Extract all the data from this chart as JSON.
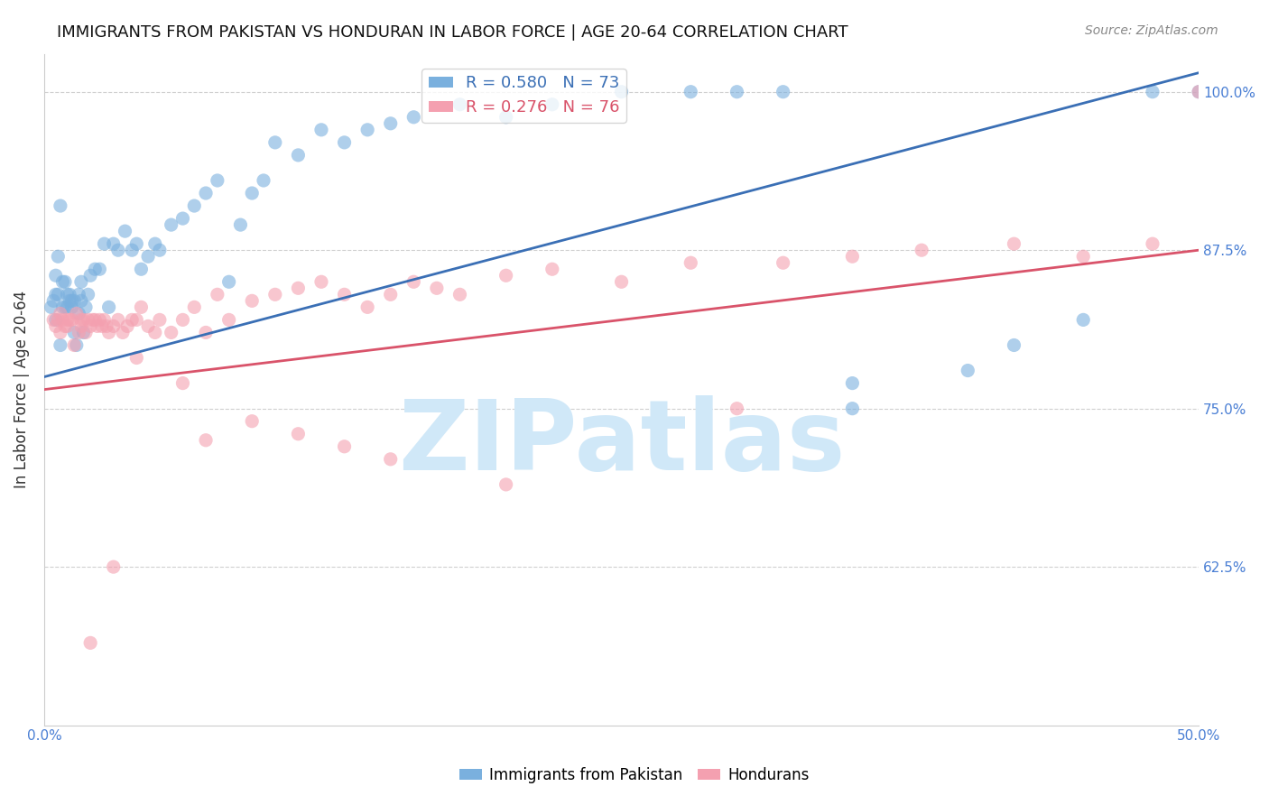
{
  "title": "IMMIGRANTS FROM PAKISTAN VS HONDURAN IN LABOR FORCE | AGE 20-64 CORRELATION CHART",
  "source": "Source: ZipAtlas.com",
  "xlabel": "",
  "ylabel": "In Labor Force | Age 20-64",
  "xlim": [
    0.0,
    0.5
  ],
  "ylim": [
    0.5,
    1.03
  ],
  "xticks": [
    0.0,
    0.1,
    0.2,
    0.3,
    0.4,
    0.5
  ],
  "xtick_labels": [
    "0.0%",
    "",
    "",
    "",
    "",
    "50.0%"
  ],
  "ytick_labels": [
    "62.5%",
    "75.0%",
    "87.5%",
    "100.0%"
  ],
  "yticks": [
    0.625,
    0.75,
    0.875,
    1.0
  ],
  "blue_color": "#7ab0de",
  "pink_color": "#f4a0b0",
  "blue_line_color": "#3a6fb5",
  "pink_line_color": "#d9536a",
  "watermark": "ZIPatlas",
  "watermark_color": "#d0e8f8",
  "blue_line_x": [
    0.0,
    0.5
  ],
  "blue_line_y": [
    0.775,
    1.015
  ],
  "pink_line_x": [
    0.0,
    0.5
  ],
  "pink_line_y": [
    0.765,
    0.875
  ],
  "background_color": "#ffffff",
  "grid_color": "#d0d0d0",
  "tick_color": "#4a7fd4",
  "title_fontsize": 13,
  "ylabel_fontsize": 12,
  "blue_scatter_x": [
    0.003,
    0.004,
    0.005,
    0.005,
    0.005,
    0.006,
    0.006,
    0.007,
    0.007,
    0.008,
    0.008,
    0.009,
    0.009,
    0.01,
    0.01,
    0.011,
    0.011,
    0.012,
    0.012,
    0.013,
    0.013,
    0.014,
    0.015,
    0.015,
    0.016,
    0.016,
    0.017,
    0.018,
    0.019,
    0.02,
    0.022,
    0.024,
    0.026,
    0.028,
    0.03,
    0.032,
    0.035,
    0.038,
    0.04,
    0.042,
    0.045,
    0.048,
    0.05,
    0.055,
    0.06,
    0.065,
    0.07,
    0.075,
    0.08,
    0.085,
    0.09,
    0.095,
    0.1,
    0.11,
    0.12,
    0.13,
    0.14,
    0.15,
    0.16,
    0.18,
    0.2,
    0.22,
    0.25,
    0.28,
    0.3,
    0.32,
    0.35,
    0.35,
    0.4,
    0.42,
    0.45,
    0.48,
    0.5
  ],
  "blue_scatter_y": [
    0.83,
    0.835,
    0.82,
    0.84,
    0.855,
    0.84,
    0.87,
    0.8,
    0.91,
    0.83,
    0.85,
    0.85,
    0.83,
    0.84,
    0.83,
    0.84,
    0.835,
    0.83,
    0.835,
    0.81,
    0.835,
    0.8,
    0.825,
    0.84,
    0.835,
    0.85,
    0.81,
    0.83,
    0.84,
    0.855,
    0.86,
    0.86,
    0.88,
    0.83,
    0.88,
    0.875,
    0.89,
    0.875,
    0.88,
    0.86,
    0.87,
    0.88,
    0.875,
    0.895,
    0.9,
    0.91,
    0.92,
    0.93,
    0.85,
    0.895,
    0.92,
    0.93,
    0.96,
    0.95,
    0.97,
    0.96,
    0.97,
    0.975,
    0.98,
    0.99,
    0.98,
    0.99,
    1.0,
    1.0,
    1.0,
    1.0,
    0.75,
    0.77,
    0.78,
    0.8,
    0.82,
    1.0,
    1.0
  ],
  "pink_scatter_x": [
    0.004,
    0.005,
    0.006,
    0.007,
    0.007,
    0.008,
    0.009,
    0.01,
    0.01,
    0.011,
    0.012,
    0.013,
    0.014,
    0.015,
    0.016,
    0.016,
    0.017,
    0.018,
    0.019,
    0.02,
    0.021,
    0.022,
    0.023,
    0.024,
    0.025,
    0.026,
    0.027,
    0.028,
    0.03,
    0.032,
    0.034,
    0.036,
    0.038,
    0.04,
    0.042,
    0.045,
    0.048,
    0.05,
    0.055,
    0.06,
    0.065,
    0.07,
    0.075,
    0.08,
    0.09,
    0.1,
    0.11,
    0.12,
    0.13,
    0.14,
    0.15,
    0.16,
    0.17,
    0.18,
    0.2,
    0.22,
    0.25,
    0.28,
    0.3,
    0.32,
    0.35,
    0.38,
    0.42,
    0.45,
    0.48,
    0.5,
    0.15,
    0.2,
    0.11,
    0.13,
    0.09,
    0.07,
    0.06,
    0.04,
    0.03,
    0.02
  ],
  "pink_scatter_y": [
    0.82,
    0.815,
    0.82,
    0.81,
    0.825,
    0.82,
    0.815,
    0.815,
    0.82,
    0.82,
    0.82,
    0.8,
    0.825,
    0.81,
    0.82,
    0.815,
    0.82,
    0.81,
    0.82,
    0.815,
    0.82,
    0.82,
    0.815,
    0.82,
    0.815,
    0.82,
    0.815,
    0.81,
    0.815,
    0.82,
    0.81,
    0.815,
    0.82,
    0.82,
    0.83,
    0.815,
    0.81,
    0.82,
    0.81,
    0.82,
    0.83,
    0.81,
    0.84,
    0.82,
    0.835,
    0.84,
    0.845,
    0.85,
    0.84,
    0.83,
    0.84,
    0.85,
    0.845,
    0.84,
    0.855,
    0.86,
    0.85,
    0.865,
    0.75,
    0.865,
    0.87,
    0.875,
    0.88,
    0.87,
    0.88,
    1.0,
    0.71,
    0.69,
    0.73,
    0.72,
    0.74,
    0.725,
    0.77,
    0.79,
    0.625,
    0.565
  ]
}
